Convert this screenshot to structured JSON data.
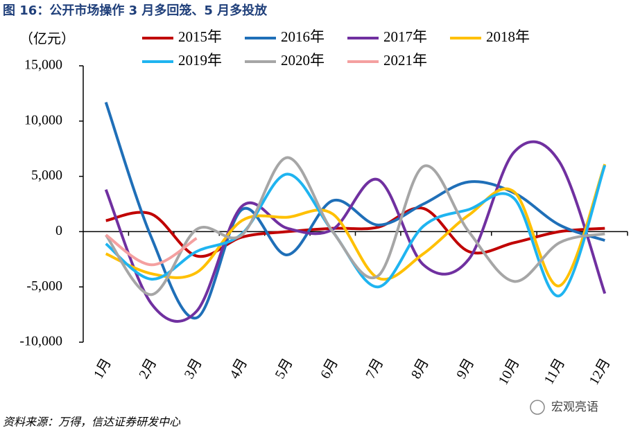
{
  "chart_data": {
    "type": "line",
    "title": "图 16：公开市场操作 3 月多回笼、5 月多投放",
    "y_label": "（亿元）",
    "source": "资料来源：万得，信达证券研发中心",
    "watermark": "宏观亮语",
    "categories": [
      "1月",
      "2月",
      "3月",
      "4月",
      "5月",
      "6月",
      "7月",
      "8月",
      "9月",
      "10月",
      "11月",
      "12月"
    ],
    "series": [
      {
        "name": "2015年",
        "color": "#c00000",
        "values": [
          1000,
          1600,
          -2200,
          -500,
          0,
          300,
          400,
          2100,
          -1800,
          -1000,
          0,
          300
        ]
      },
      {
        "name": "2016年",
        "color": "#1f6fb8",
        "values": [
          11700,
          -500,
          -7800,
          2000,
          -2100,
          2800,
          600,
          2500,
          4500,
          3500,
          600,
          -800
        ]
      },
      {
        "name": "2017年",
        "color": "#7030a0",
        "values": [
          3800,
          -6500,
          -7200,
          2300,
          300,
          200,
          4700,
          -3000,
          -2500,
          7200,
          6300,
          -5600
        ]
      },
      {
        "name": "2018年",
        "color": "#ffc000",
        "values": [
          -2000,
          -3800,
          -3700,
          1000,
          1300,
          1600,
          -4200,
          -2000,
          1500,
          3600,
          -4900,
          6100
        ]
      },
      {
        "name": "2019年",
        "color": "#1fb4f0",
        "values": [
          -1100,
          -4300,
          -1800,
          -200,
          5200,
          0,
          -5000,
          500,
          2000,
          3000,
          -5800,
          6000
        ]
      },
      {
        "name": "2020年",
        "color": "#a6a6a6",
        "values": [
          -300,
          -5700,
          200,
          -300,
          6700,
          0,
          -4000,
          5900,
          0,
          -4500,
          -1000,
          -200
        ]
      },
      {
        "name": "2021年",
        "color": "#f4a0a0",
        "values": [
          -300,
          -3000,
          -600,
          null,
          null,
          null,
          null,
          null,
          null,
          null,
          null,
          null
        ]
      }
    ],
    "ylim": [
      -10000,
      15000
    ],
    "yticks": [
      {
        "value": -10000,
        "label": "-10,000"
      },
      {
        "value": -5000,
        "label": "-5,000"
      },
      0,
      {
        "value": 5000,
        "label": "5,000"
      },
      {
        "value": 10000,
        "label": "10,000"
      },
      {
        "value": 15000,
        "label": "15,000"
      }
    ]
  }
}
